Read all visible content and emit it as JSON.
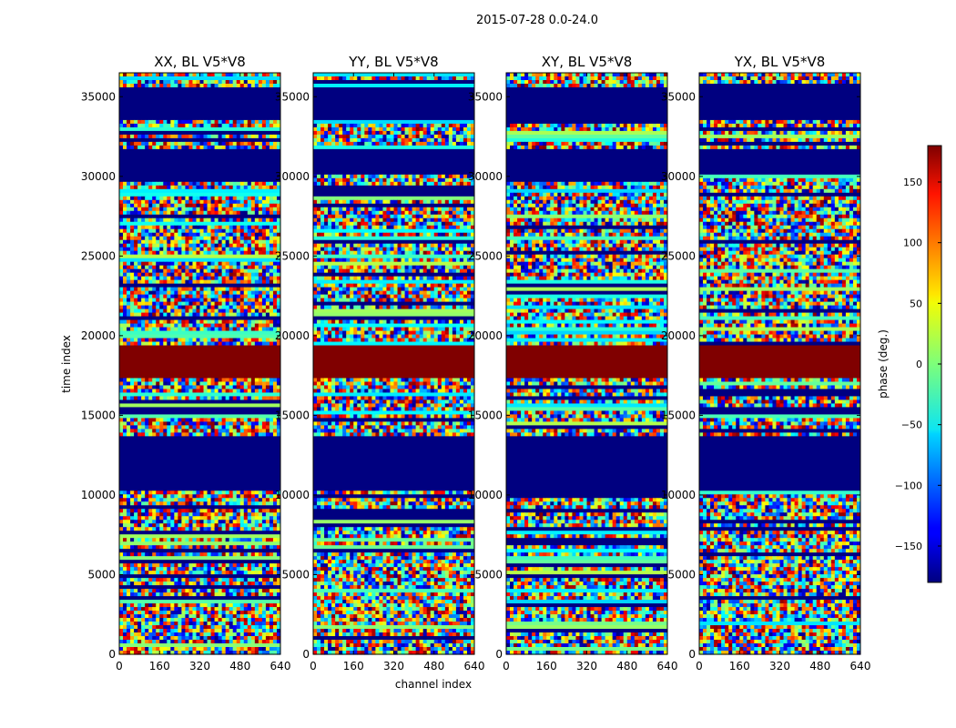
{
  "chart_data": {
    "type": "heatmap",
    "suptitle": "2015-07-28 0.0-24.0",
    "xlabel": "channel index",
    "ylabel": "time index",
    "xlim": [
      0,
      640
    ],
    "ylim": [
      0,
      36500
    ],
    "xticks": [
      0,
      160,
      320,
      480,
      640
    ],
    "yticks": [
      0,
      5000,
      10000,
      15000,
      20000,
      25000,
      30000,
      35000
    ],
    "panels": [
      {
        "title": "XX, BL V5*V8"
      },
      {
        "title": "YY, BL V5*V8"
      },
      {
        "title": "XY, BL V5*V8"
      },
      {
        "title": "YX, BL V5*V8"
      }
    ],
    "colorbar": {
      "label": "phase (deg.)",
      "range": [
        -180,
        180
      ],
      "ticks": [
        -150,
        -100,
        -50,
        0,
        50,
        100,
        150
      ],
      "colormap": "jet"
    },
    "band_structure": {
      "value_deg": {
        "dark_red": 180,
        "dark_blue": -180
      },
      "solid_bands": [
        {
          "from": 17400,
          "to": 19400,
          "phase": 180
        },
        {
          "from": 10300,
          "to": 13800,
          "phase": -180
        },
        {
          "from": 33600,
          "to": 35600,
          "phase": -180
        },
        {
          "from": 30000,
          "to": 31700,
          "phase": -180
        }
      ]
    }
  }
}
